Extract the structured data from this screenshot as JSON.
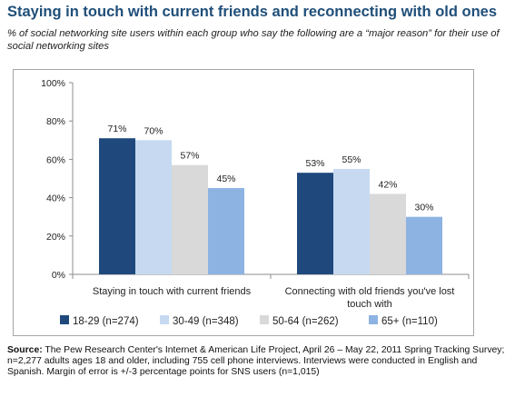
{
  "title": "Staying in touch with current friends and reconnecting with old ones",
  "subtitle": "% of social networking site users within each group who say the following are a “major reason” for their use of social networking sites",
  "source_label": "Source:",
  "source_text": "The Pew Research Center's Internet & American Life Project, April 26 – May 22, 2011 Spring Tracking Survey; n=2,277 adults ages 18 and older, including 755 cell phone interviews. Interviews were conducted in English and Spanish. Margin of error is +/-3 percentage points for SNS users (n=1,015)",
  "chart_data": {
    "type": "bar",
    "categories": [
      "Staying in touch with current friends",
      "Connecting with old friends you've lost touch with"
    ],
    "category_lines": [
      [
        "Staying in touch with current friends"
      ],
      [
        "Connecting with old friends you've lost",
        "touch with"
      ]
    ],
    "series": [
      {
        "name": "18-29 (n=274)",
        "values": [
          71,
          53
        ],
        "labels": [
          "71%",
          "53%"
        ],
        "color": "#1f497d"
      },
      {
        "name": "30-49 (n=348)",
        "values": [
          70,
          55
        ],
        "labels": [
          "70%",
          "55%"
        ],
        "color": "#c6d9f1"
      },
      {
        "name": "50-64 (n=262)",
        "values": [
          57,
          42
        ],
        "labels": [
          "57%",
          "42%"
        ],
        "color": "#d9d9d9"
      },
      {
        "name": "65+ (n=110)",
        "values": [
          45,
          30
        ],
        "labels": [
          "45%",
          "30%"
        ],
        "color": "#8db3e2"
      }
    ],
    "ylim": [
      0,
      100
    ],
    "yticks": [
      "0%",
      "20%",
      "40%",
      "60%",
      "80%",
      "100%"
    ],
    "ytick_values": [
      0,
      20,
      40,
      60,
      80,
      100
    ],
    "grid": false,
    "legend_position": "bottom"
  }
}
